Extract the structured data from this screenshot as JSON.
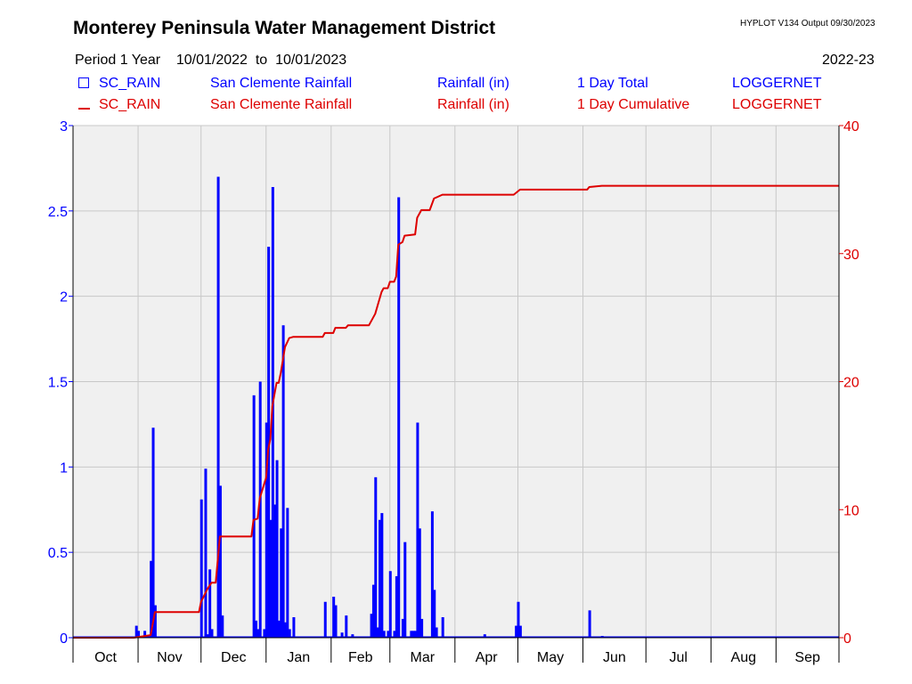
{
  "header": {
    "title": "Monterey Peninsula Water Management District",
    "version": "HYPLOT V134  Output 09/30/2023",
    "period_label": "Period 1 Year",
    "period_start": "10/01/2022",
    "to_label": "to",
    "period_end": "10/01/2023",
    "season": "2022-23"
  },
  "legend": [
    {
      "symbol": "square",
      "color": "#0000ff",
      "site": "SC_RAIN",
      "name": "San Clemente Rainfall",
      "units": "Rainfall (in)",
      "aggregation": "1 Day Total",
      "source": "LOGGERNET"
    },
    {
      "symbol": "line",
      "color": "#dd0000",
      "site": "SC_RAIN",
      "name": "San Clemente Rainfall",
      "units": "Rainfall (in)",
      "aggregation": "1 Day Cumulative",
      "source": "LOGGERNET"
    }
  ],
  "chart_data": {
    "type": "bar",
    "x_axis": {
      "type": "date",
      "start": "2022-10-01",
      "end": "2023-10-01",
      "month_labels": [
        "Oct",
        "Nov",
        "Dec",
        "Jan",
        "Feb",
        "Mar",
        "Apr",
        "May",
        "Jun",
        "Jul",
        "Aug",
        "Sep"
      ]
    },
    "y_left": {
      "range": [
        0,
        3
      ],
      "ticks": [
        "0",
        "0.5",
        "1",
        "1.5",
        "2",
        "2.5",
        "3"
      ],
      "color": "#0000ff"
    },
    "y_right": {
      "range": [
        0,
        40
      ],
      "ticks": [
        "0",
        "10",
        "20",
        "30",
        "40"
      ],
      "color": "#dd0000"
    },
    "grid": true,
    "series": [
      {
        "name": "SC_RAIN",
        "type": "bar",
        "axis": "left",
        "color": "#0000ff",
        "points": [
          [
            "2022-10-31",
            0.07
          ],
          [
            "2022-11-01",
            0.04
          ],
          [
            "2022-11-04",
            0.04
          ],
          [
            "2022-11-07",
            0.45
          ],
          [
            "2022-11-08",
            1.23
          ],
          [
            "2022-11-09",
            0.19
          ],
          [
            "2022-12-01",
            0.81
          ],
          [
            "2022-12-03",
            0.99
          ],
          [
            "2022-12-04",
            0.02
          ],
          [
            "2022-12-05",
            0.4
          ],
          [
            "2022-12-06",
            0.05
          ],
          [
            "2022-12-09",
            2.7
          ],
          [
            "2022-12-10",
            0.89
          ],
          [
            "2022-12-11",
            0.13
          ],
          [
            "2022-12-26",
            1.42
          ],
          [
            "2022-12-27",
            0.1
          ],
          [
            "2022-12-28",
            0.05
          ],
          [
            "2022-12-29",
            1.5
          ],
          [
            "2022-12-31",
            0.05
          ],
          [
            "2023-01-01",
            1.26
          ],
          [
            "2023-01-02",
            2.29
          ],
          [
            "2023-01-03",
            0.69
          ],
          [
            "2023-01-04",
            2.64
          ],
          [
            "2023-01-05",
            0.78
          ],
          [
            "2023-01-06",
            1.04
          ],
          [
            "2023-01-07",
            0.1
          ],
          [
            "2023-01-08",
            0.64
          ],
          [
            "2023-01-09",
            1.83
          ],
          [
            "2023-01-10",
            0.09
          ],
          [
            "2023-01-11",
            0.76
          ],
          [
            "2023-01-12",
            0.05
          ],
          [
            "2023-01-14",
            0.12
          ],
          [
            "2023-01-29",
            0.21
          ],
          [
            "2023-02-02",
            0.24
          ],
          [
            "2023-02-03",
            0.19
          ],
          [
            "2023-02-06",
            0.03
          ],
          [
            "2023-02-08",
            0.13
          ],
          [
            "2023-02-11",
            0.02
          ],
          [
            "2023-02-20",
            0.14
          ],
          [
            "2023-02-21",
            0.31
          ],
          [
            "2023-02-22",
            0.94
          ],
          [
            "2023-02-23",
            0.06
          ],
          [
            "2023-02-24",
            0.69
          ],
          [
            "2023-02-25",
            0.73
          ],
          [
            "2023-02-26",
            0.04
          ],
          [
            "2023-02-28",
            0.04
          ],
          [
            "2023-03-01",
            0.39
          ],
          [
            "2023-03-03",
            0.04
          ],
          [
            "2023-03-04",
            0.36
          ],
          [
            "2023-03-05",
            2.58
          ],
          [
            "2023-03-07",
            0.11
          ],
          [
            "2023-03-08",
            0.56
          ],
          [
            "2023-03-11",
            0.04
          ],
          [
            "2023-03-12",
            0.04
          ],
          [
            "2023-03-13",
            0.04
          ],
          [
            "2023-03-14",
            1.26
          ],
          [
            "2023-03-15",
            0.64
          ],
          [
            "2023-03-16",
            0.11
          ],
          [
            "2023-03-21",
            0.74
          ],
          [
            "2023-03-22",
            0.28
          ],
          [
            "2023-03-23",
            0.06
          ],
          [
            "2023-03-26",
            0.12
          ],
          [
            "2023-04-15",
            0.02
          ],
          [
            "2023-04-30",
            0.07
          ],
          [
            "2023-05-01",
            0.21
          ],
          [
            "2023-05-02",
            0.07
          ],
          [
            "2023-06-04",
            0.16
          ],
          [
            "2023-06-10",
            0.01
          ]
        ]
      },
      {
        "name": "SC_RAIN",
        "type": "line",
        "axis": "right",
        "color": "#dd0000",
        "points": [
          [
            "2022-10-01",
            0
          ],
          [
            "2022-10-30",
            0
          ],
          [
            "2022-11-07",
            0.2
          ],
          [
            "2022-11-09",
            2.0
          ],
          [
            "2022-11-30",
            2.0
          ],
          [
            "2022-12-01",
            2.8
          ],
          [
            "2022-12-04",
            3.8
          ],
          [
            "2022-12-06",
            4.3
          ],
          [
            "2022-12-08",
            4.3
          ],
          [
            "2022-12-10",
            7.9
          ],
          [
            "2022-12-25",
            7.9
          ],
          [
            "2022-12-26",
            9.2
          ],
          [
            "2022-12-28",
            9.3
          ],
          [
            "2022-12-29",
            10.9
          ],
          [
            "2023-01-01",
            12.5
          ],
          [
            "2023-01-02",
            14.7
          ],
          [
            "2023-01-03",
            15.5
          ],
          [
            "2023-01-04",
            18.1
          ],
          [
            "2023-01-06",
            19.9
          ],
          [
            "2023-01-07",
            19.9
          ],
          [
            "2023-01-08",
            20.7
          ],
          [
            "2023-01-10",
            22.7
          ],
          [
            "2023-01-12",
            23.4
          ],
          [
            "2023-01-14",
            23.5
          ],
          [
            "2023-01-28",
            23.5
          ],
          [
            "2023-01-29",
            23.8
          ],
          [
            "2023-02-02",
            23.8
          ],
          [
            "2023-02-03",
            24.2
          ],
          [
            "2023-02-08",
            24.2
          ],
          [
            "2023-02-09",
            24.4
          ],
          [
            "2023-02-19",
            24.4
          ],
          [
            "2023-02-22",
            25.3
          ],
          [
            "2023-02-25",
            27.0
          ],
          [
            "2023-02-26",
            27.3
          ],
          [
            "2023-02-28",
            27.3
          ],
          [
            "2023-03-01",
            27.8
          ],
          [
            "2023-03-03",
            27.8
          ],
          [
            "2023-03-04",
            28.2
          ],
          [
            "2023-03-05",
            30.7
          ],
          [
            "2023-03-07",
            30.9
          ],
          [
            "2023-03-08",
            31.4
          ],
          [
            "2023-03-13",
            31.5
          ],
          [
            "2023-03-14",
            32.8
          ],
          [
            "2023-03-16",
            33.4
          ],
          [
            "2023-03-20",
            33.4
          ],
          [
            "2023-03-22",
            34.3
          ],
          [
            "2023-03-26",
            34.6
          ],
          [
            "2023-04-29",
            34.6
          ],
          [
            "2023-05-02",
            35.0
          ],
          [
            "2023-06-03",
            35.0
          ],
          [
            "2023-06-04",
            35.2
          ],
          [
            "2023-06-10",
            35.3
          ],
          [
            "2023-10-01",
            35.3
          ]
        ]
      }
    ]
  }
}
